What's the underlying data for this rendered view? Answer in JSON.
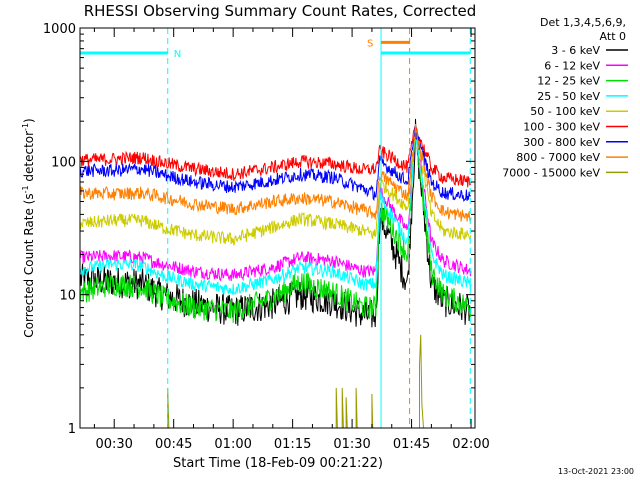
{
  "chart_data": {
    "type": "line",
    "title": "RHESSI Observing Summary Count Rates, Corrected",
    "xlabel": "Start Time (18-Feb-09 00:21:22)",
    "ylabel_main": "Corrected Count Rate (s",
    "ylabel_sup1": "-1",
    "ylabel_mid": " detector",
    "ylabel_sup2": "-1",
    "ylabel_end": ")",
    "y_scale": "log",
    "ylim": [
      1,
      1000
    ],
    "xlim_minutes": [
      21.37,
      121.0
    ],
    "y_ticks": [
      {
        "value": 1,
        "label": "1"
      },
      {
        "value": 10,
        "label": "10"
      },
      {
        "value": 100,
        "label": "100"
      },
      {
        "value": 1000,
        "label": "1000"
      }
    ],
    "x_ticks": [
      {
        "minute": 30,
        "label": "00:30"
      },
      {
        "minute": 45,
        "label": "00:45"
      },
      {
        "minute": 60,
        "label": "01:00"
      },
      {
        "minute": 75,
        "label": "01:15"
      },
      {
        "minute": 90,
        "label": "01:30"
      },
      {
        "minute": 105,
        "label": "01:45"
      },
      {
        "minute": 120,
        "label": "02:00"
      }
    ],
    "legend_header_1": "Det 1,3,4,5,6,9,",
    "legend_header_2": "Att 0",
    "series": [
      {
        "name": "3 - 6 keV",
        "color": "#000000",
        "points": [
          [
            21.5,
            13
          ],
          [
            30,
            12.5
          ],
          [
            37,
            12
          ],
          [
            42,
            10
          ],
          [
            50,
            8.5
          ],
          [
            60,
            7.5
          ],
          [
            70,
            8.5
          ],
          [
            77,
            10
          ],
          [
            85,
            9
          ],
          [
            93,
            7
          ],
          [
            96,
            7
          ],
          [
            96.5,
            15
          ],
          [
            97,
            40
          ],
          [
            104,
            12
          ],
          [
            106,
            160
          ],
          [
            110,
            12
          ],
          [
            113,
            9
          ],
          [
            120,
            7.5
          ]
        ]
      },
      {
        "name": "6 - 12 keV",
        "color": "#ff00ff",
        "points": [
          [
            21.5,
            19
          ],
          [
            30,
            19.5
          ],
          [
            37,
            19
          ],
          [
            42,
            17
          ],
          [
            50,
            15
          ],
          [
            60,
            14
          ],
          [
            70,
            16
          ],
          [
            77,
            19
          ],
          [
            85,
            18
          ],
          [
            93,
            15
          ],
          [
            96,
            15
          ],
          [
            97,
            60
          ],
          [
            104,
            30
          ],
          [
            106,
            170
          ],
          [
            110,
            25
          ],
          [
            113,
            18
          ],
          [
            120,
            15
          ]
        ]
      },
      {
        "name": "12 - 25 keV",
        "color": "#00dd00",
        "points": [
          [
            21.5,
            10.5
          ],
          [
            30,
            12
          ],
          [
            37,
            11.5
          ],
          [
            42,
            9.5
          ],
          [
            50,
            8
          ],
          [
            60,
            7.5
          ],
          [
            70,
            9.5
          ],
          [
            77,
            12.5
          ],
          [
            85,
            10.5
          ],
          [
            93,
            8
          ],
          [
            96,
            8
          ],
          [
            97,
            45
          ],
          [
            104,
            20
          ],
          [
            106,
            165
          ],
          [
            110,
            15
          ],
          [
            113,
            10
          ],
          [
            120,
            8
          ]
        ]
      },
      {
        "name": "25 - 50 keV",
        "color": "#00ffff",
        "points": [
          [
            21.5,
            15.5
          ],
          [
            30,
            17
          ],
          [
            37,
            16.5
          ],
          [
            42,
            14
          ],
          [
            50,
            12
          ],
          [
            60,
            11
          ],
          [
            70,
            13
          ],
          [
            77,
            16
          ],
          [
            85,
            15
          ],
          [
            93,
            12
          ],
          [
            96,
            12
          ],
          [
            97,
            55
          ],
          [
            104,
            25
          ],
          [
            106,
            170
          ],
          [
            110,
            20
          ],
          [
            113,
            14
          ],
          [
            120,
            12
          ]
        ]
      },
      {
        "name": "50 - 100 keV",
        "color": "#cccc00",
        "points": [
          [
            21.5,
            34
          ],
          [
            30,
            36
          ],
          [
            37,
            36
          ],
          [
            42,
            32
          ],
          [
            50,
            28
          ],
          [
            60,
            26
          ],
          [
            70,
            32
          ],
          [
            77,
            37
          ],
          [
            85,
            34
          ],
          [
            93,
            30
          ],
          [
            96,
            28
          ],
          [
            97,
            70
          ],
          [
            104,
            45
          ],
          [
            106,
            175
          ],
          [
            110,
            40
          ],
          [
            113,
            30
          ],
          [
            120,
            28
          ]
        ]
      },
      {
        "name": "100 - 300 keV",
        "color": "#ff0000",
        "points": [
          [
            21.5,
            102
          ],
          [
            30,
            104
          ],
          [
            37,
            107
          ],
          [
            42,
            98
          ],
          [
            50,
            88
          ],
          [
            60,
            80
          ],
          [
            70,
            90
          ],
          [
            77,
            100
          ],
          [
            85,
            96
          ],
          [
            93,
            86
          ],
          [
            96,
            88
          ],
          [
            97,
            120
          ],
          [
            104,
            90
          ],
          [
            106,
            180
          ],
          [
            110,
            90
          ],
          [
            113,
            75
          ],
          [
            120,
            70
          ]
        ]
      },
      {
        "name": "300 - 800 keV",
        "color": "#0000ff",
        "points": [
          [
            21.5,
            85
          ],
          [
            30,
            85
          ],
          [
            37,
            88
          ],
          [
            42,
            80
          ],
          [
            50,
            70
          ],
          [
            60,
            64
          ],
          [
            70,
            72
          ],
          [
            77,
            80
          ],
          [
            85,
            76
          ],
          [
            93,
            62
          ],
          [
            96,
            57
          ],
          [
            97,
            100
          ],
          [
            104,
            70
          ],
          [
            106,
            170
          ],
          [
            110,
            70
          ],
          [
            113,
            58
          ],
          [
            120,
            55
          ]
        ]
      },
      {
        "name": "800 - 7000 keV",
        "color": "#ff8000",
        "points": [
          [
            21.5,
            58
          ],
          [
            30,
            57
          ],
          [
            37,
            58
          ],
          [
            42,
            54
          ],
          [
            50,
            48
          ],
          [
            60,
            44
          ],
          [
            70,
            50
          ],
          [
            77,
            53
          ],
          [
            85,
            50
          ],
          [
            93,
            43
          ],
          [
            96,
            40
          ],
          [
            97,
            80
          ],
          [
            104,
            55
          ],
          [
            106,
            170
          ],
          [
            110,
            55
          ],
          [
            113,
            42
          ],
          [
            120,
            38
          ]
        ]
      },
      {
        "name": "7000 - 15000 keV",
        "color": "#999900",
        "points": [
          [
            43.5,
            1
          ],
          [
            43.5,
            2
          ],
          [
            43.8,
            1
          ],
          [
            86,
            1
          ],
          [
            86,
            2
          ],
          [
            86.3,
            1
          ],
          [
            87.5,
            1
          ],
          [
            87.5,
            2
          ],
          [
            87.8,
            1
          ],
          [
            88.5,
            1
          ],
          [
            88.5,
            1.7
          ],
          [
            88.8,
            1
          ],
          [
            91,
            1
          ],
          [
            91,
            2
          ],
          [
            91.3,
            1
          ],
          [
            95,
            1
          ],
          [
            95,
            1.8
          ],
          [
            95.2,
            1
          ],
          [
            107,
            1
          ],
          [
            107,
            3
          ],
          [
            107.3,
            5
          ],
          [
            107.6,
            1.5
          ],
          [
            108,
            1
          ]
        ]
      }
    ],
    "attenuator_flags": [
      {
        "label": "N",
        "start_minute": 21.5,
        "end_minute": 43.5,
        "level": 650,
        "color": "#00ffff"
      },
      {
        "label": "",
        "start_minute": 97.3,
        "end_minute": 119.8,
        "level": 650,
        "color": "#00ffff"
      }
    ],
    "saa_flag": {
      "label": "S",
      "start_minute": 97.3,
      "end_minute": 104.5,
      "level": 780,
      "color": "#ff8000"
    },
    "vlines": [
      {
        "minute": 43.5,
        "color": "#00ffff",
        "style": "dashed"
      },
      {
        "minute": 97.3,
        "color": "#00ffff",
        "style": "solid"
      },
      {
        "minute": 104.5,
        "color": "#ff8000",
        "style": "dashed"
      },
      {
        "minute": 119.8,
        "color": "#00ffff",
        "style": "dashed"
      }
    ],
    "timestamp": "13-Oct-2021 23:00"
  }
}
